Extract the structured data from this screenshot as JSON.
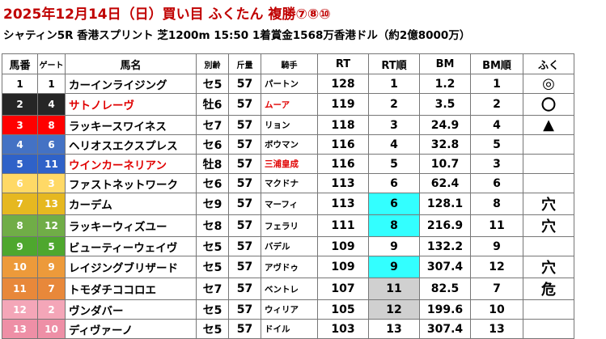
{
  "title": "2025年12月14日（日）買い目 ふくたん 複勝⑦⑧⑩",
  "race_info": "シャティン5R 香港スプリント 芝1200m 15:50 1着賞金1568万香港ドル（約2億8000万）",
  "headers": {
    "horse_no": "馬番",
    "gate": "ゲート",
    "horse_name": "馬名",
    "sex_age": "別齢",
    "weight": "斤量",
    "jockey": "騎手",
    "rt": "RT",
    "rt_rank": "RT順",
    "bm": "BM",
    "bm_rank": "BM順",
    "fuku": "ふく"
  },
  "colors": {
    "highlight_cyan": "#33ffff",
    "highlight_gray": "#d0d0d0",
    "name_red": "#e00000"
  },
  "rows": [
    {
      "no": "1",
      "gate": "1",
      "name": "カーインライジング",
      "sex": "セ5",
      "kg": "57",
      "jockey": "パートン",
      "rt": "128",
      "rt_rank": "1",
      "bm": "1.2",
      "bm_rank": "1",
      "mark": "◎",
      "bg": "#ffffff",
      "fg": "#000000",
      "red": false,
      "hl": ""
    },
    {
      "no": "2",
      "gate": "4",
      "name": "サトノレーヴ",
      "sex": "牡6",
      "kg": "57",
      "jockey": "ムーア",
      "rt": "119",
      "rt_rank": "2",
      "bm": "3.5",
      "bm_rank": "2",
      "mark": "〇",
      "bg": "#262626",
      "fg": "#ffffff",
      "red": true,
      "hl": ""
    },
    {
      "no": "3",
      "gate": "8",
      "name": "ラッキースワイネス",
      "sex": "セ7",
      "kg": "57",
      "jockey": "リョン",
      "rt": "118",
      "rt_rank": "3",
      "bm": "24.9",
      "bm_rank": "4",
      "mark": "▲",
      "bg": "#ff0000",
      "fg": "#ffffff",
      "red": false,
      "hl": ""
    },
    {
      "no": "4",
      "gate": "6",
      "name": "ヘリオスエクスプレス",
      "sex": "セ6",
      "kg": "57",
      "jockey": "ボウマン",
      "rt": "116",
      "rt_rank": "4",
      "bm": "32.8",
      "bm_rank": "5",
      "mark": "",
      "bg": "#4472c4",
      "fg": "#ffffff",
      "red": false,
      "hl": ""
    },
    {
      "no": "5",
      "gate": "11",
      "name": "ウインカーネリアン",
      "sex": "牡8",
      "kg": "57",
      "jockey": "三浦皇成",
      "rt": "116",
      "rt_rank": "5",
      "bm": "10.7",
      "bm_rank": "3",
      "mark": "",
      "bg": "#2f62c8",
      "fg": "#ffffff",
      "red": true,
      "hl": ""
    },
    {
      "no": "6",
      "gate": "3",
      "name": "ファストネットワーク",
      "sex": "セ6",
      "kg": "57",
      "jockey": "マクドナ",
      "rt": "113",
      "rt_rank": "6",
      "bm": "62.4",
      "bm_rank": "6",
      "mark": "",
      "bg": "#ffd966",
      "fg": "#ffffff",
      "red": false,
      "hl": ""
    },
    {
      "no": "7",
      "gate": "13",
      "name": "カーデム",
      "sex": "セ9",
      "kg": "57",
      "jockey": "マーフィ",
      "rt": "113",
      "rt_rank": "6",
      "bm": "128.1",
      "bm_rank": "8",
      "mark": "穴",
      "bg": "#e6b820",
      "fg": "#ffffff",
      "red": false,
      "hl": "cyan"
    },
    {
      "no": "8",
      "gate": "12",
      "name": "ラッキーウィズユー",
      "sex": "セ8",
      "kg": "57",
      "jockey": "フェラリ",
      "rt": "111",
      "rt_rank": "8",
      "bm": "216.9",
      "bm_rank": "11",
      "mark": "穴",
      "bg": "#70ad47",
      "fg": "#ffffff",
      "red": false,
      "hl": "cyan"
    },
    {
      "no": "9",
      "gate": "5",
      "name": "ビューティーウェイヴ",
      "sex": "セ5",
      "kg": "57",
      "jockey": "バデル",
      "rt": "109",
      "rt_rank": "9",
      "bm": "132.2",
      "bm_rank": "9",
      "mark": "",
      "bg": "#4ea72e",
      "fg": "#ffffff",
      "red": false,
      "hl": ""
    },
    {
      "no": "10",
      "gate": "9",
      "name": "レイジングブリザード",
      "sex": "セ5",
      "kg": "57",
      "jockey": "アヴドゥ",
      "rt": "109",
      "rt_rank": "9",
      "bm": "307.4",
      "bm_rank": "12",
      "mark": "穴",
      "bg": "#ed9a3a",
      "fg": "#ffffff",
      "red": false,
      "hl": "cyan"
    },
    {
      "no": "11",
      "gate": "7",
      "name": "トモダチココロエ",
      "sex": "セ7",
      "kg": "57",
      "jockey": "ベントレ",
      "rt": "107",
      "rt_rank": "11",
      "bm": "82.5",
      "bm_rank": "7",
      "mark": "危",
      "bg": "#e8883a",
      "fg": "#ffffff",
      "red": false,
      "hl": "gray"
    },
    {
      "no": "12",
      "gate": "2",
      "name": "ヴンダバー",
      "sex": "セ5",
      "kg": "57",
      "jockey": "ウィリア",
      "rt": "105",
      "rt_rank": "12",
      "bm": "199.6",
      "bm_rank": "10",
      "mark": "",
      "bg": "#f4a6b8",
      "fg": "#ffffff",
      "red": false,
      "hl": "gray"
    },
    {
      "no": "13",
      "gate": "10",
      "name": "ディヴァーノ",
      "sex": "セ5",
      "kg": "57",
      "jockey": "ドイル",
      "rt": "103",
      "rt_rank": "13",
      "bm": "307.4",
      "bm_rank": "13",
      "mark": "",
      "bg": "#ee8fa6",
      "fg": "#ffffff",
      "red": false,
      "hl": ""
    }
  ]
}
